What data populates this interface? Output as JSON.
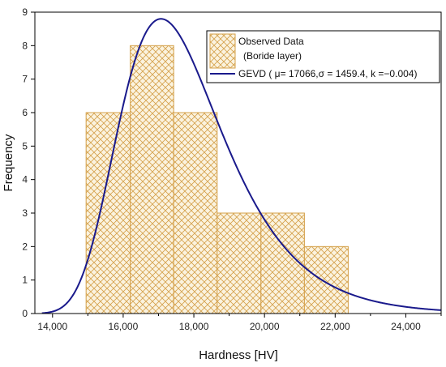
{
  "chart_data": {
    "type": "bar",
    "xlabel": "Hardness [HV]",
    "ylabel": "Frequency",
    "xlim": [
      13500,
      25000
    ],
    "ylim": [
      0,
      9
    ],
    "x_ticks": [
      14000,
      16000,
      18000,
      20000,
      22000,
      24000
    ],
    "x_tick_labels": [
      "14,000",
      "16,000",
      "18,000",
      "20,000",
      "22,000",
      "24,000"
    ],
    "y_ticks": [
      0,
      1,
      2,
      3,
      4,
      5,
      6,
      7,
      8,
      9
    ],
    "y_tick_labels": [
      "0",
      "1",
      "2",
      "3",
      "4",
      "5",
      "6",
      "7",
      "8",
      "9"
    ],
    "grid": false,
    "legend_position": "top-right",
    "histogram": {
      "name_line1": "Observed Data",
      "name_line2": "(Boride layer)",
      "bins": [
        {
          "start": 14950,
          "end": 16200,
          "value": 6
        },
        {
          "start": 16200,
          "end": 17430,
          "value": 8
        },
        {
          "start": 17430,
          "end": 18660,
          "value": 6
        },
        {
          "start": 18660,
          "end": 19900,
          "value": 3
        },
        {
          "start": 19900,
          "end": 21130,
          "value": 3
        },
        {
          "start": 21130,
          "end": 22370,
          "value": 2
        }
      ],
      "color": "#d4a04a",
      "fill": "#fbf3df"
    },
    "fit": {
      "name": "GEVD ( μ= 17066,σ = 1459.4, k =−0.004)",
      "distribution": "GEV",
      "mu": 17066,
      "sigma": 1459.4,
      "k": -0.004,
      "color": "#1a1a8c",
      "x_range": [
        13700,
        25000
      ],
      "amplitude_peak": 8.8
    }
  }
}
